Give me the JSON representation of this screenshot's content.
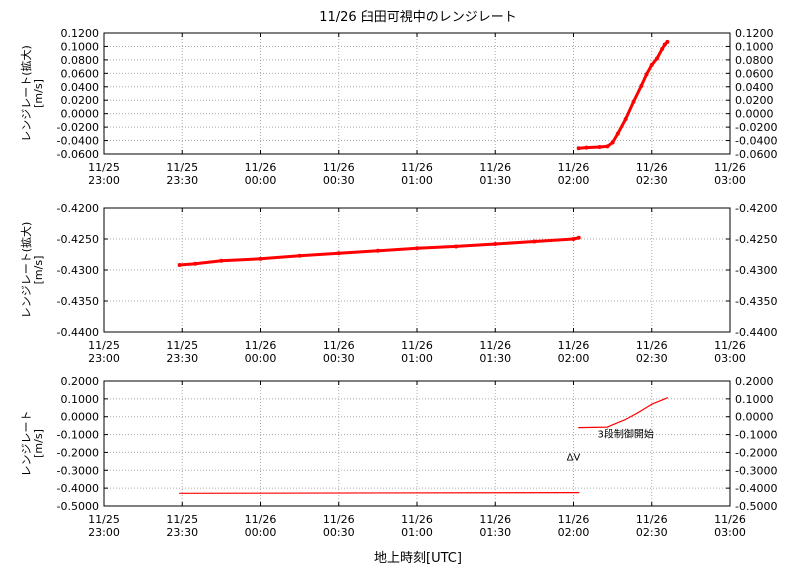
{
  "title": "11/26 臼田可視中のレンジレート",
  "xlabel": "地上時刻[UTC]",
  "x_ticks": [
    [
      "11/25",
      "23:00"
    ],
    [
      "11/25",
      "23:30"
    ],
    [
      "11/26",
      "00:00"
    ],
    [
      "11/26",
      "00:30"
    ],
    [
      "11/26",
      "01:00"
    ],
    [
      "11/26",
      "01:30"
    ],
    [
      "11/26",
      "02:00"
    ],
    [
      "11/26",
      "02:30"
    ],
    [
      "11/26",
      "03:00"
    ]
  ],
  "colors": {
    "series": "#ff0000",
    "grid": "#aaaaaa",
    "axis": "#000000"
  },
  "chart_data": [
    {
      "type": "scatter",
      "title": "11/26 臼田可視中のレンジレート",
      "ylabel": "レンジレート(拡大)",
      "yunit": "[m/s]",
      "xlim": [
        "23:00",
        "03:00"
      ],
      "ylim": [
        -0.07,
        0.12
      ],
      "y_ticks": [
        "0.1200",
        "0.1000",
        "0.0800",
        "0.0600",
        "0.0400",
        "0.0200",
        "0.0000",
        "-0.0200",
        "-0.0400",
        "-0.0600"
      ],
      "grid": true,
      "series": [
        {
          "x": [
            "02:02",
            "02:05",
            "02:10",
            "02:13",
            "02:15",
            "02:17",
            "02:20",
            "02:23",
            "02:26",
            "02:28",
            "02:30",
            "02:32",
            "02:34",
            "02:35",
            "02:36"
          ],
          "y": [
            -0.061,
            -0.06,
            -0.059,
            -0.058,
            -0.052,
            -0.038,
            -0.015,
            0.012,
            0.037,
            0.055,
            0.07,
            0.08,
            0.095,
            0.102,
            0.106
          ]
        }
      ]
    },
    {
      "type": "scatter",
      "ylabel": "レンジレート(拡大)",
      "yunit": "[m/s]",
      "xlim": [
        "23:00",
        "03:00"
      ],
      "ylim": [
        -0.44,
        -0.42
      ],
      "y_ticks": [
        "-0.4200",
        "-0.4250",
        "-0.4300",
        "-0.4350",
        "-0.4400"
      ],
      "grid": true,
      "series": [
        {
          "x": [
            "23:29",
            "23:35",
            "23:45",
            "00:00",
            "00:15",
            "00:30",
            "00:45",
            "01:00",
            "01:15",
            "01:30",
            "01:45",
            "02:00",
            "02:02"
          ],
          "y": [
            -0.4292,
            -0.429,
            -0.4285,
            -0.4282,
            -0.4277,
            -0.4273,
            -0.4269,
            -0.4265,
            -0.4262,
            -0.4258,
            -0.4254,
            -0.425,
            -0.4248
          ]
        }
      ]
    },
    {
      "type": "line",
      "ylabel": "レンジレート",
      "yunit": "[m/s]",
      "xlim": [
        "23:00",
        "03:00"
      ],
      "ylim": [
        -0.5,
        0.2
      ],
      "y_ticks": [
        "0.2000",
        "0.1000",
        "0.0000",
        "-0.1000",
        "-0.2000",
        "-0.3000",
        "-0.4000",
        "-0.5000"
      ],
      "grid": true,
      "series": [
        {
          "x": [
            "23:29",
            "02:02"
          ],
          "y": [
            -0.429,
            -0.425
          ]
        },
        {
          "x": [
            "02:02",
            "02:13",
            "02:15",
            "02:20",
            "02:25",
            "02:30",
            "02:36"
          ],
          "y": [
            -0.061,
            -0.058,
            -0.045,
            -0.015,
            0.025,
            0.07,
            0.106
          ]
        }
      ],
      "annotations": [
        {
          "text": "ΔV",
          "x": "02:00",
          "y": -0.245
        },
        {
          "text": "3段制御開始",
          "x": "02:20",
          "y": -0.115
        }
      ]
    }
  ]
}
